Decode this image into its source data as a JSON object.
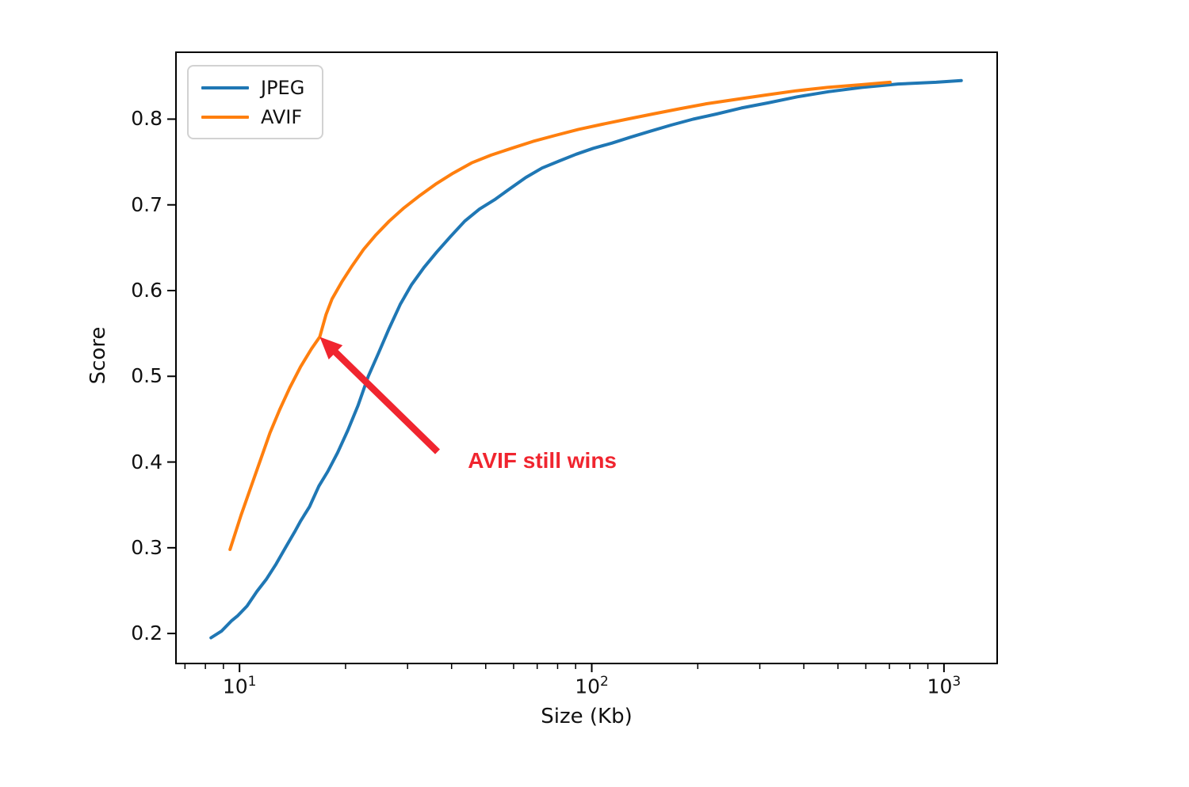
{
  "chart_data": {
    "type": "line",
    "title": "",
    "xlabel": "Size (Kb)",
    "ylabel": "Score",
    "x_scale": "log",
    "grid": false,
    "xlim": [
      6.6,
      1416
    ],
    "ylim": [
      0.165,
      0.878
    ],
    "x_major_ticks": [
      {
        "value": 10,
        "base": "10",
        "exp": "1"
      },
      {
        "value": 100,
        "base": "10",
        "exp": "2"
      },
      {
        "value": 1000,
        "base": "10",
        "exp": "3"
      }
    ],
    "y_ticks": [
      {
        "value": 0.2,
        "label": "0.2"
      },
      {
        "value": 0.3,
        "label": "0.3"
      },
      {
        "value": 0.4,
        "label": "0.4"
      },
      {
        "value": 0.5,
        "label": "0.5"
      },
      {
        "value": 0.6,
        "label": "0.6"
      },
      {
        "value": 0.7,
        "label": "0.7"
      },
      {
        "value": 0.8,
        "label": "0.8"
      }
    ],
    "legend": {
      "position": "upper left",
      "entries": [
        {
          "label": "JPEG",
          "color": "#1f77b4"
        },
        {
          "label": "AVIF",
          "color": "#ff7f0e"
        }
      ]
    },
    "series": [
      {
        "name": "JPEG",
        "color": "#1f77b4",
        "points": [
          [
            8.3,
            0.195
          ],
          [
            8.9,
            0.203
          ],
          [
            9.5,
            0.215
          ],
          [
            9.9,
            0.221
          ],
          [
            10.5,
            0.232
          ],
          [
            11.2,
            0.249
          ],
          [
            11.9,
            0.263
          ],
          [
            12.7,
            0.281
          ],
          [
            13.5,
            0.3
          ],
          [
            14.4,
            0.32
          ],
          [
            14.9,
            0.331
          ],
          [
            15.8,
            0.348
          ],
          [
            16.8,
            0.372
          ],
          [
            17.8,
            0.389
          ],
          [
            19.0,
            0.411
          ],
          [
            20.3,
            0.437
          ],
          [
            21.7,
            0.466
          ],
          [
            23.2,
            0.5
          ],
          [
            24.8,
            0.527
          ],
          [
            26.6,
            0.556
          ],
          [
            28.6,
            0.584
          ],
          [
            30.8,
            0.607
          ],
          [
            33.4,
            0.627
          ],
          [
            36.3,
            0.645
          ],
          [
            39.7,
            0.663
          ],
          [
            43.6,
            0.681
          ],
          [
            48.0,
            0.695
          ],
          [
            53.0,
            0.706
          ],
          [
            58.6,
            0.719
          ],
          [
            65.0,
            0.732
          ],
          [
            72.3,
            0.743
          ],
          [
            80.7,
            0.751
          ],
          [
            90.3,
            0.759
          ],
          [
            101,
            0.766
          ],
          [
            114,
            0.772
          ],
          [
            129,
            0.779
          ],
          [
            147,
            0.786
          ],
          [
            168,
            0.793
          ],
          [
            194,
            0.8
          ],
          [
            226,
            0.806
          ],
          [
            266,
            0.813
          ],
          [
            317,
            0.819
          ],
          [
            383,
            0.826
          ],
          [
            470,
            0.832
          ],
          [
            585,
            0.837
          ],
          [
            740,
            0.841
          ],
          [
            950,
            0.843
          ],
          [
            1120,
            0.845
          ]
        ]
      },
      {
        "name": "AVIF",
        "color": "#ff7f0e",
        "points": [
          [
            9.4,
            0.298
          ],
          [
            10.1,
            0.338
          ],
          [
            10.8,
            0.372
          ],
          [
            11.5,
            0.404
          ],
          [
            12.2,
            0.434
          ],
          [
            13.0,
            0.461
          ],
          [
            13.9,
            0.487
          ],
          [
            14.9,
            0.511
          ],
          [
            16.0,
            0.532
          ],
          [
            16.9,
            0.546
          ],
          [
            17.6,
            0.572
          ],
          [
            18.3,
            0.59
          ],
          [
            19.5,
            0.61
          ],
          [
            20.9,
            0.629
          ],
          [
            22.5,
            0.648
          ],
          [
            24.4,
            0.665
          ],
          [
            26.6,
            0.681
          ],
          [
            29.2,
            0.696
          ],
          [
            32.3,
            0.71
          ],
          [
            36.0,
            0.724
          ],
          [
            40.4,
            0.737
          ],
          [
            45.6,
            0.749
          ],
          [
            51.8,
            0.758
          ],
          [
            59.2,
            0.766
          ],
          [
            68.1,
            0.774
          ],
          [
            78.8,
            0.781
          ],
          [
            91.7,
            0.788
          ],
          [
            107,
            0.794
          ],
          [
            126,
            0.8
          ],
          [
            149,
            0.806
          ],
          [
            177,
            0.812
          ],
          [
            212,
            0.818
          ],
          [
            256,
            0.823
          ],
          [
            311,
            0.828
          ],
          [
            380,
            0.833
          ],
          [
            467,
            0.837
          ],
          [
            577,
            0.84
          ],
          [
            703,
            0.843
          ]
        ]
      }
    ],
    "annotation": {
      "text": "AVIF still wins",
      "color": "#f0252f",
      "text_at": [
        44.5,
        0.401
      ],
      "arrow_tail": [
        36.5,
        0.412
      ],
      "arrow_tip": [
        16.9,
        0.546
      ]
    }
  }
}
